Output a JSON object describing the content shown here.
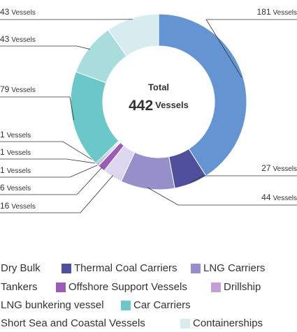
{
  "chart_data": {
    "type": "donut",
    "unit": "Vessels",
    "total_label": "Total",
    "total": 442,
    "categories": [
      "Dry Bulk",
      "Thermal Coal Carriers",
      "LNG Carriers",
      "Tankers",
      "Offshore Support Vessels",
      "Drillship",
      "LNG bunkering vessel",
      null,
      "Car Carriers",
      "Short Sea and Coastal Vessels",
      "Containerships"
    ],
    "values": [
      181,
      27,
      44,
      16,
      6,
      1,
      1,
      1,
      79,
      43,
      43
    ],
    "colors": [
      "#6494d2",
      "#4f4f9e",
      "#9590c9",
      "#dcd6ee",
      "#9c5bb5",
      "#c39fd6",
      "#3d6fa8",
      "#2f8f9a",
      "#6cc8c8",
      "#a9dcdc",
      "#d6ecef"
    ]
  }
}
